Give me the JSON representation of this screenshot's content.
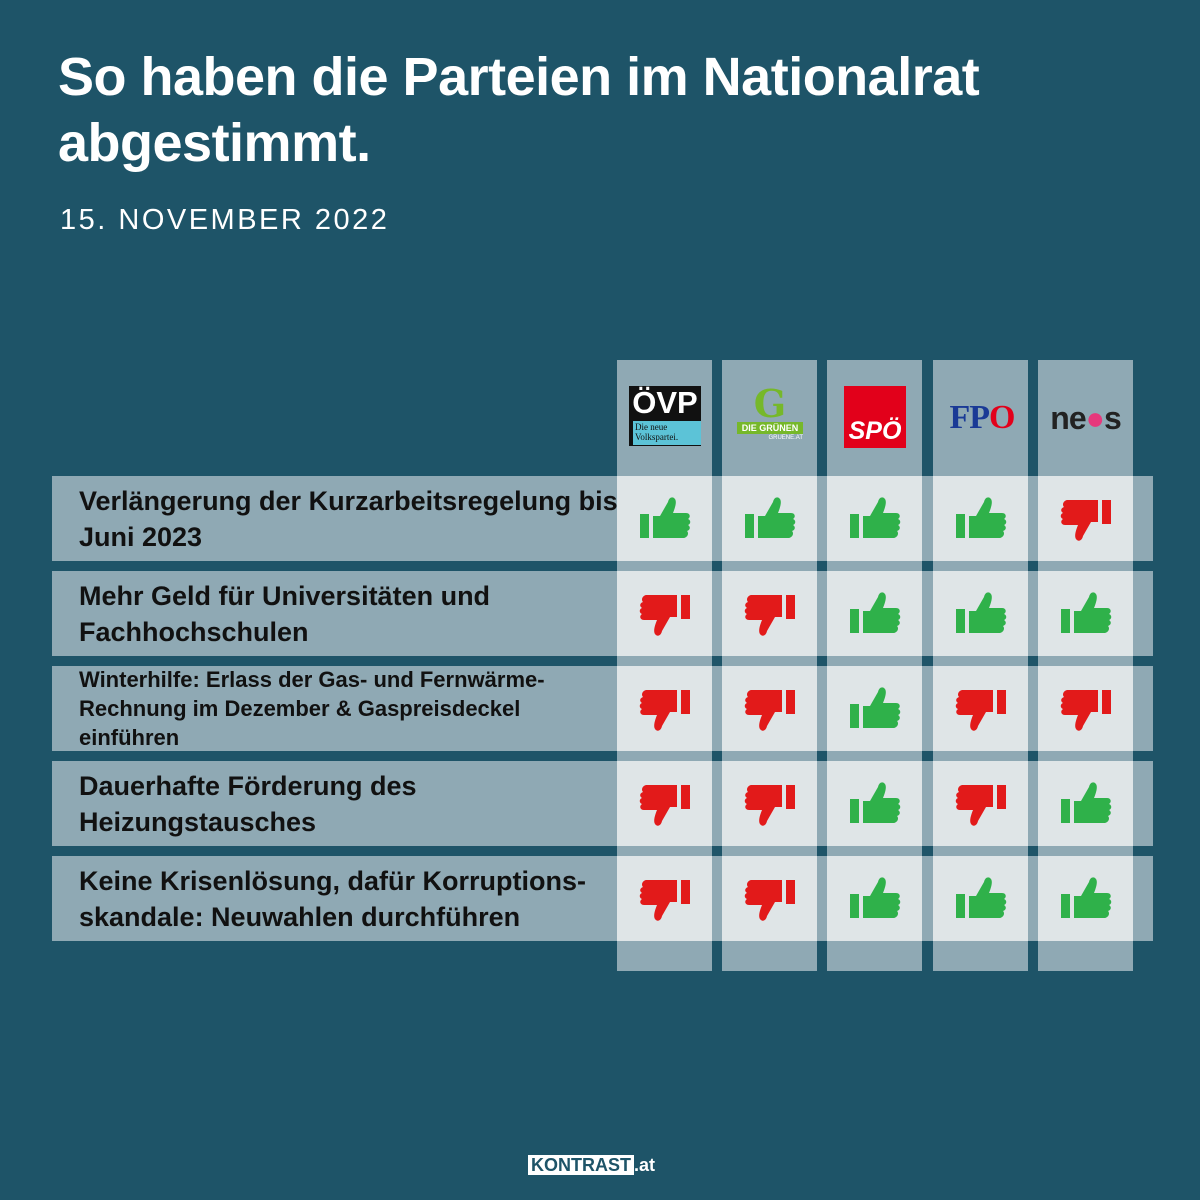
{
  "title": "So haben die Parteien im Nationalrat abgestimmt.",
  "date": "15. NOVEMBER 2022",
  "parties": [
    {
      "name": "ÖVP",
      "sub": "Die neue Volkspartei.",
      "logo": "oevp-logo"
    },
    {
      "name": "DIE GRÜNEN",
      "sub": "GRUENE.AT",
      "logo": "gruene-logo"
    },
    {
      "name": "SPÖ",
      "logo": "spoe-logo"
    },
    {
      "name": "FPÖ",
      "logo": "fpoe-logo"
    },
    {
      "name": "neos",
      "logo": "neos-logo"
    }
  ],
  "rows": [
    {
      "label": "Verlängerung der Kurzarbeitsregelung bis Juni 2023",
      "votes": [
        "yes",
        "yes",
        "yes",
        "yes",
        "no"
      ]
    },
    {
      "label": "Mehr Geld für Universitäten und Fachhochschulen",
      "votes": [
        "no",
        "no",
        "yes",
        "yes",
        "yes"
      ]
    },
    {
      "label": "Winterhilfe: Erlass der Gas- und Fernwärme-Rechnung im Dezember & Gaspreisdeckel einführen",
      "votes": [
        "no",
        "no",
        "yes",
        "no",
        "no"
      ]
    },
    {
      "label": "Dauerhafte Förderung des Heizungstausches",
      "votes": [
        "no",
        "no",
        "yes",
        "no",
        "yes"
      ]
    },
    {
      "label": "Keine Krisenlösung, dafür Korruptions-skandale: Neuwahlen durchführen",
      "votes": [
        "no",
        "no",
        "yes",
        "yes",
        "yes"
      ]
    }
  ],
  "footer": {
    "brand": "KONTRAST",
    "suffix": ".at"
  },
  "colors": {
    "background": "#1e5468",
    "yes": "#2fb14a",
    "no": "#e21a1a"
  }
}
